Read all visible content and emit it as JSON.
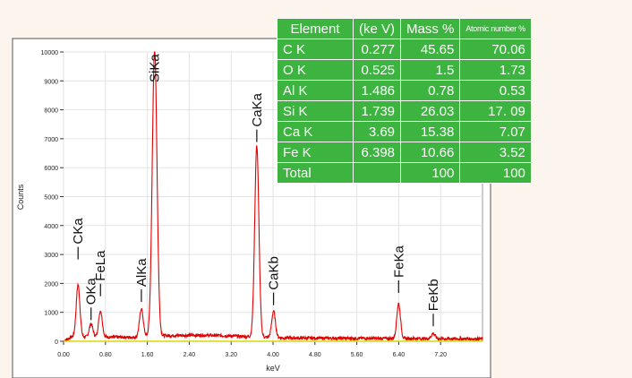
{
  "chart_data": {
    "type": "line",
    "xlabel": "keV",
    "ylabel": "Counts",
    "xlim": [
      0.0,
      8.0
    ],
    "ylim": [
      0,
      10000
    ],
    "x_ticks": [
      "0.00",
      "0.80",
      "1.60",
      "2.40",
      "3.20",
      "4.00",
      "4.80",
      "5.60",
      "6.40",
      "7.20"
    ],
    "y_ticks": [
      "0",
      "1000",
      "2000",
      "3000",
      "4000",
      "5000",
      "6000",
      "7000",
      "8000",
      "9000",
      "10000"
    ],
    "background_level": 150,
    "series_color": "#e00000",
    "peaks": [
      {
        "label": "CKa",
        "x": 0.277,
        "y": 1900
      },
      {
        "label": "OKa",
        "x": 0.525,
        "y": 550
      },
      {
        "label": "FeLa",
        "x": 0.705,
        "y": 1000
      },
      {
        "label": "AlKa",
        "x": 1.486,
        "y": 1050
      },
      {
        "label": "SiKa",
        "x": 1.739,
        "y": 10000
      },
      {
        "label": "CaKa",
        "x": 3.69,
        "y": 6700
      },
      {
        "label": "CaKb",
        "x": 4.01,
        "y": 1000
      },
      {
        "label": "FeKa",
        "x": 6.398,
        "y": 1300
      },
      {
        "label": "FeKb",
        "x": 7.06,
        "y": 270
      }
    ]
  },
  "table": {
    "header_color": "#3db340",
    "headers": [
      "Element",
      "(ke V)",
      "Mass %",
      "Atomic number %"
    ],
    "rows": [
      [
        "C K",
        "0.277",
        "45.65",
        "70.06"
      ],
      [
        "O K",
        "0.525",
        "1.5",
        "1.73"
      ],
      [
        "Al K",
        "1.486",
        "0.78",
        "0.53"
      ],
      [
        "Si K",
        "1.739",
        "26.03",
        "17. 09"
      ],
      [
        "Ca K",
        "3.69",
        "15.38",
        "7.07"
      ],
      [
        "Fe K",
        "6.398",
        "10.66",
        "3.52"
      ],
      [
        "Total",
        "",
        "100",
        "100"
      ]
    ]
  }
}
